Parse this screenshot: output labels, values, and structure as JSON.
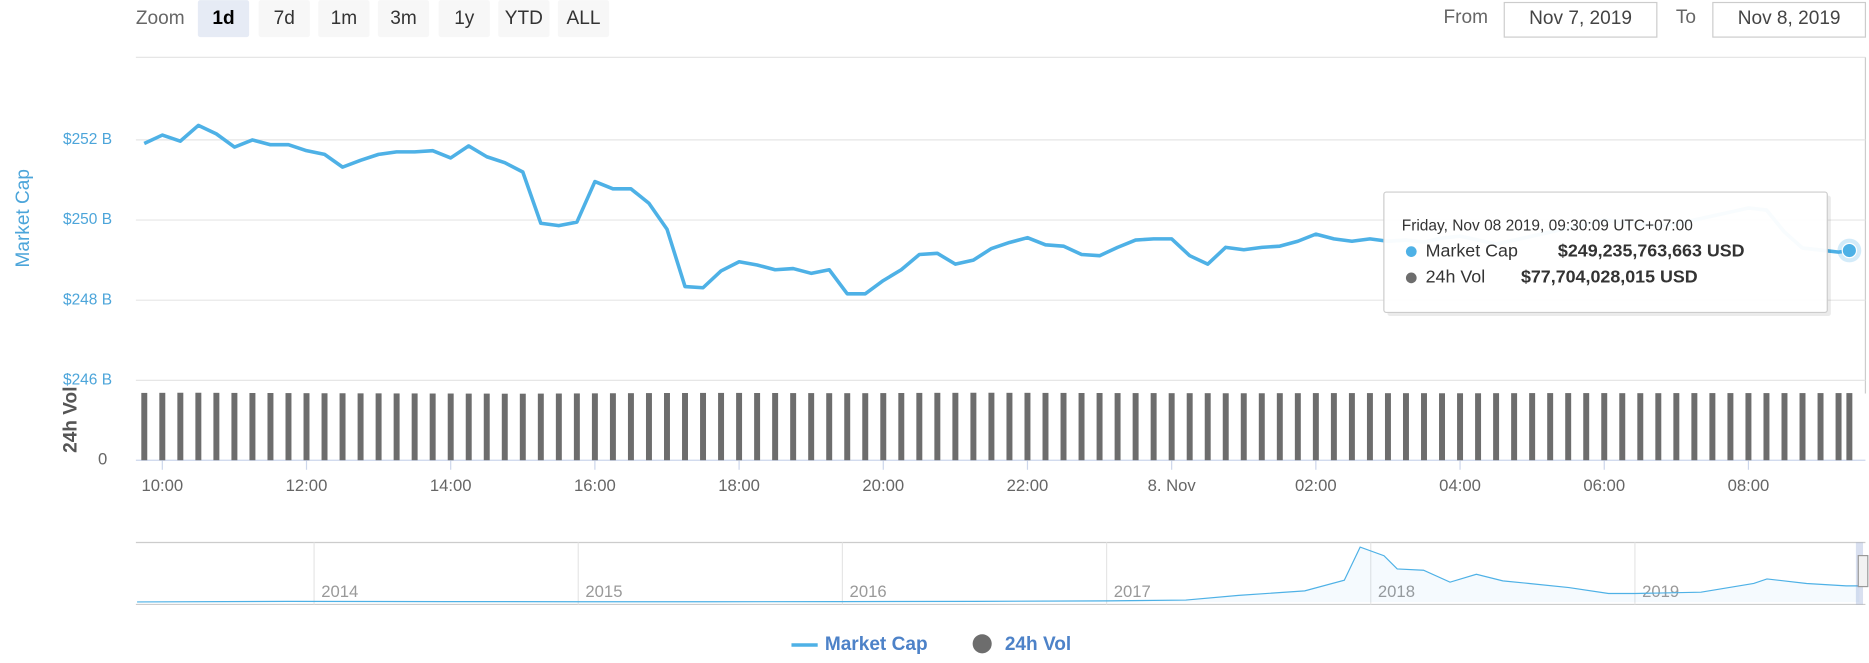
{
  "zoom": {
    "label": "Zoom",
    "buttons": [
      "1d",
      "7d",
      "1m",
      "3m",
      "1y",
      "YTD",
      "ALL"
    ],
    "selected": "1d"
  },
  "range": {
    "from_label": "From",
    "from": "Nov 7, 2019",
    "to_label": "To",
    "to": "Nov 8, 2019"
  },
  "chart_data": {
    "type": "line",
    "ylabel": "Market Cap",
    "y2label": "24h Vol",
    "x": [
      9.75,
      10,
      10.25,
      10.5,
      10.75,
      11,
      11.25,
      11.5,
      11.75,
      12,
      12.25,
      12.5,
      12.75,
      13,
      13.25,
      13.5,
      13.75,
      14,
      14.25,
      14.5,
      14.75,
      15,
      15.25,
      15.5,
      15.75,
      16,
      16.25,
      16.5,
      16.75,
      17,
      17.25,
      17.5,
      17.75,
      18,
      18.25,
      18.5,
      18.75,
      19,
      19.25,
      19.5,
      19.75,
      20,
      20.25,
      20.5,
      20.75,
      21,
      21.25,
      21.5,
      21.75,
      22,
      22.25,
      22.5,
      22.75,
      23,
      23.25,
      23.5,
      23.75,
      24,
      24.25,
      24.5,
      24.75,
      25,
      25.25,
      25.5,
      25.75,
      26,
      26.25,
      26.5,
      26.75,
      27,
      27.25,
      27.5,
      27.75,
      28,
      28.25,
      28.5,
      28.75,
      29,
      29.25,
      29.5,
      29.75,
      30,
      30.25,
      30.5,
      30.75,
      31,
      31.25,
      31.5,
      31.75,
      32,
      32.25,
      32.5,
      32.75,
      33,
      33.25,
      33.4
    ],
    "xlim": [
      9.65,
      33.54
    ],
    "xticks": [
      {
        "value": 10,
        "label": "10:00"
      },
      {
        "value": 12,
        "label": "12:00"
      },
      {
        "value": 14,
        "label": "14:00"
      },
      {
        "value": 16,
        "label": "16:00"
      },
      {
        "value": 18,
        "label": "18:00"
      },
      {
        "value": 20,
        "label": "20:00"
      },
      {
        "value": 22,
        "label": "22:00"
      },
      {
        "value": 24,
        "label": "8. Nov"
      },
      {
        "value": 26,
        "label": "02:00"
      },
      {
        "value": 28,
        "label": "04:00"
      },
      {
        "value": 30,
        "label": "06:00"
      },
      {
        "value": 32,
        "label": "08:00"
      }
    ],
    "ylim": [
      246,
      254
    ],
    "yticks": [
      {
        "value": 246,
        "label": "$246 B"
      },
      {
        "value": 248,
        "label": "$248 B"
      },
      {
        "value": 250,
        "label": "$250 B"
      },
      {
        "value": 252,
        "label": "$252 B"
      }
    ],
    "y2lim": [
      0,
      80000000000
    ],
    "y2ticks": [
      0
    ],
    "grid": true,
    "series": [
      {
        "name": "Market Cap",
        "color": "#4eb1e6",
        "values": [
          251.91,
          252.12,
          251.97,
          252.36,
          252.15,
          251.82,
          252.0,
          251.88,
          251.88,
          251.73,
          251.64,
          251.32,
          251.49,
          251.64,
          251.7,
          251.7,
          251.73,
          251.55,
          251.85,
          251.58,
          251.43,
          251.2,
          249.92,
          249.86,
          249.95,
          250.96,
          250.78,
          250.78,
          250.42,
          249.77,
          248.34,
          248.31,
          248.73,
          248.96,
          248.88,
          248.76,
          248.79,
          248.67,
          248.76,
          248.16,
          248.16,
          248.49,
          248.76,
          249.14,
          249.17,
          248.9,
          249.0,
          249.29,
          249.44,
          249.56,
          249.38,
          249.35,
          249.14,
          249.11,
          249.32,
          249.5,
          249.53,
          249.53,
          249.11,
          248.9,
          249.32,
          249.26,
          249.32,
          249.35,
          249.47,
          249.65,
          249.53,
          249.47,
          249.53,
          249.47,
          249.5,
          249.45,
          249.55,
          249.6,
          249.5,
          249.4,
          249.5,
          249.6,
          249.7,
          249.8,
          249.9,
          250.0,
          249.95,
          249.9,
          249.85,
          249.9,
          250.0,
          250.1,
          250.2,
          250.3,
          250.25,
          249.7,
          249.3,
          249.25,
          249.2,
          249.24
        ]
      },
      {
        "name": "24h Vol",
        "color": "#6d6d6d",
        "type": "bar",
        "axis": "y2",
        "values": [
          77900000000.0,
          78000000000.0,
          78100000000.0,
          78100000000.0,
          78000000000.0,
          77900000000.0,
          77800000000.0,
          77800000000.0,
          77700000000.0,
          77600000000.0,
          77500000000.0,
          77500000000.0,
          77400000000.0,
          77400000000.0,
          77300000000.0,
          77300000000.0,
          77200000000.0,
          77200000000.0,
          77100000000.0,
          77100000000.0,
          77000000000.0,
          77000000000.0,
          77100000000.0,
          77200000000.0,
          77300000000.0,
          77400000000.0,
          77500000000.0,
          77600000000.0,
          77700000000.0,
          77800000000.0,
          77800000000.0,
          77900000000.0,
          77900000000.0,
          77900000000.0,
          77800000000.0,
          77800000000.0,
          77700000000.0,
          77700000000.0,
          77600000000.0,
          77600000000.0,
          77600000000.0,
          77700000000.0,
          77800000000.0,
          77900000000.0,
          78000000000.0,
          78000000000.0,
          78100000000.0,
          78100000000.0,
          78000000000.0,
          78000000000.0,
          77900000000.0,
          77900000000.0,
          77800000000.0,
          77800000000.0,
          77700000000.0,
          77700000000.0,
          77700000000.0,
          77600000000.0,
          77600000000.0,
          77600000000.0,
          77500000000.0,
          77500000000.0,
          77500000000.0,
          77600000000.0,
          77600000000.0,
          77700000000.0,
          77700000000.0,
          77700000000.0,
          77700000000.0,
          77600000000.0,
          77600000000.0,
          77600000000.0,
          77500000000.0,
          77500000000.0,
          77500000000.0,
          77600000000.0,
          77600000000.0,
          77700000000.0,
          77700000000.0,
          77700000000.0,
          77700000000.0,
          77700000000.0,
          77600000000.0,
          77600000000.0,
          77600000000.0,
          77700000000.0,
          77700000000.0,
          77700000000.0,
          77700000000.0,
          77700000000.0,
          77700000000.0,
          77700000000.0,
          77700000000.0,
          77700000000.0,
          77700000000.0,
          77704028015
        ]
      }
    ],
    "tooltip": {
      "date": "Friday, Nov 08 2019, 09:30:09 UTC+07:00",
      "market_cap": "$249,235,763,663 USD",
      "volume": "$77,704,028,015 USD"
    },
    "navigator": {
      "x": [
        2013.33,
        2013.9,
        2014.5,
        2015.0,
        2015.5,
        2016.0,
        2016.5,
        2017.0,
        2017.3,
        2017.5,
        2017.75,
        2017.9,
        2017.96,
        2018.05,
        2018.1,
        2018.2,
        2018.3,
        2018.4,
        2018.5,
        2018.6,
        2018.75,
        2018.9,
        2019.0,
        2019.25,
        2019.45,
        2019.5,
        2019.65,
        2019.8,
        2019.85
      ],
      "values": [
        1.5,
        10,
        8,
        5,
        5,
        7,
        10,
        18,
        30,
        100,
        170,
        330,
        830,
        700,
        500,
        480,
        300,
        420,
        320,
        280,
        220,
        130,
        130,
        150,
        280,
        350,
        280,
        245,
        245
      ],
      "xlim": [
        2013.33,
        2019.85
      ],
      "xticks": [
        2014,
        2015,
        2016,
        2017,
        2018,
        2019
      ],
      "ylim": [
        0,
        900
      ]
    }
  }
}
